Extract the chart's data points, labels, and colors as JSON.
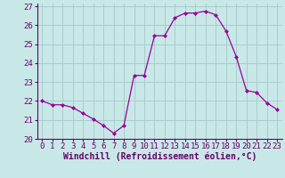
{
  "x": [
    0,
    1,
    2,
    3,
    4,
    5,
    6,
    7,
    8,
    9,
    10,
    11,
    12,
    13,
    14,
    15,
    16,
    17,
    18,
    19,
    20,
    21,
    22,
    23
  ],
  "y": [
    22.0,
    21.8,
    21.8,
    21.65,
    21.35,
    21.05,
    20.7,
    20.3,
    20.7,
    23.35,
    23.35,
    25.45,
    25.45,
    26.4,
    26.65,
    26.65,
    26.75,
    26.55,
    25.7,
    24.35,
    22.55,
    22.45,
    21.9,
    21.55
  ],
  "line_color": "#990099",
  "marker": "D",
  "marker_size": 2.0,
  "bg_color": "#c8e8e8",
  "grid_color": "#aacccc",
  "xlabel": "Windchill (Refroidissement éolien,°C)",
  "xlabel_color": "#660066",
  "tick_color": "#660066",
  "ylim": [
    20,
    27
  ],
  "xlim": [
    -0.5,
    23.5
  ],
  "yticks": [
    20,
    21,
    22,
    23,
    24,
    25,
    26,
    27
  ],
  "xticks": [
    0,
    1,
    2,
    3,
    4,
    5,
    6,
    7,
    8,
    9,
    10,
    11,
    12,
    13,
    14,
    15,
    16,
    17,
    18,
    19,
    20,
    21,
    22,
    23
  ],
  "tick_fontsize": 6.5,
  "xlabel_fontsize": 7.0
}
